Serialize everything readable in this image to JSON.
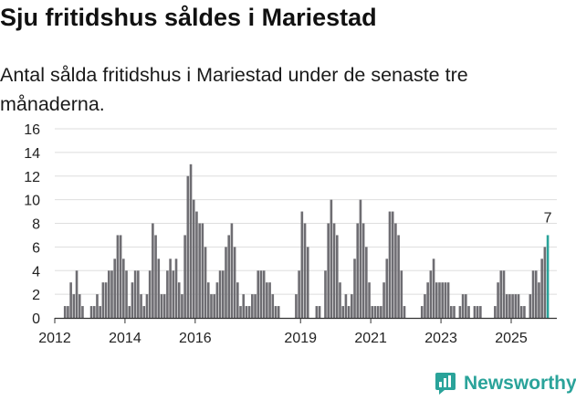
{
  "title": "Sju fritidshus såldes i Mariestad",
  "subtitle": "Antal sålda fritidshus i Mariestad under de senaste tre månaderna.",
  "brand": {
    "name": "Newsworthy",
    "icon": "newsworthy-logo-icon"
  },
  "colors": {
    "bar": "#6e6d72",
    "highlight": "#2aa39a",
    "grid": "#dedede",
    "axis": "#333333"
  },
  "chart_data": {
    "type": "bar",
    "title": "Sju fritidshus såldes i Mariestad",
    "xlabel": "",
    "ylabel": "",
    "ylim": [
      0,
      16
    ],
    "yticks": [
      0,
      2,
      4,
      6,
      8,
      10,
      12,
      14,
      16
    ],
    "grid": true,
    "xlim": [
      2012,
      2026.3
    ],
    "xticks": [
      2012,
      2014,
      2016,
      2019,
      2021,
      2023,
      2025
    ],
    "period": "monthly",
    "start": "2012-01",
    "values": [
      0,
      0,
      0,
      1,
      1,
      3,
      2,
      4,
      2,
      1,
      0,
      0,
      1,
      1,
      2,
      1,
      3,
      3,
      4,
      4,
      5,
      7,
      7,
      5,
      4,
      1,
      3,
      4,
      4,
      2,
      1,
      2,
      4,
      8,
      7,
      5,
      2,
      2,
      4,
      5,
      4,
      5,
      3,
      2,
      7,
      12,
      13,
      10,
      9,
      8,
      8,
      6,
      3,
      2,
      2,
      3,
      4,
      4,
      6,
      7,
      8,
      6,
      3,
      1,
      2,
      1,
      1,
      2,
      2,
      4,
      4,
      4,
      3,
      3,
      2,
      1,
      1,
      0,
      0,
      0,
      0,
      0,
      2,
      4,
      9,
      8,
      6,
      0,
      0,
      1,
      1,
      0,
      4,
      8,
      10,
      8,
      7,
      3,
      1,
      2,
      1,
      2,
      5,
      8,
      10,
      8,
      6,
      3,
      1,
      1,
      1,
      1,
      3,
      5,
      9,
      9,
      8,
      7,
      4,
      1,
      0,
      0,
      0,
      0,
      0,
      1,
      2,
      3,
      4,
      5,
      3,
      3,
      3,
      3,
      3,
      1,
      1,
      0,
      1,
      2,
      2,
      1,
      0,
      1,
      1,
      1,
      0,
      0,
      0,
      0,
      1,
      3,
      4,
      4,
      2,
      2,
      2,
      2,
      2,
      1,
      1,
      0,
      2,
      4,
      4,
      3,
      5,
      6,
      7
    ],
    "highlight_last": true,
    "annotations": [
      {
        "label": "7",
        "target": "last"
      }
    ]
  }
}
